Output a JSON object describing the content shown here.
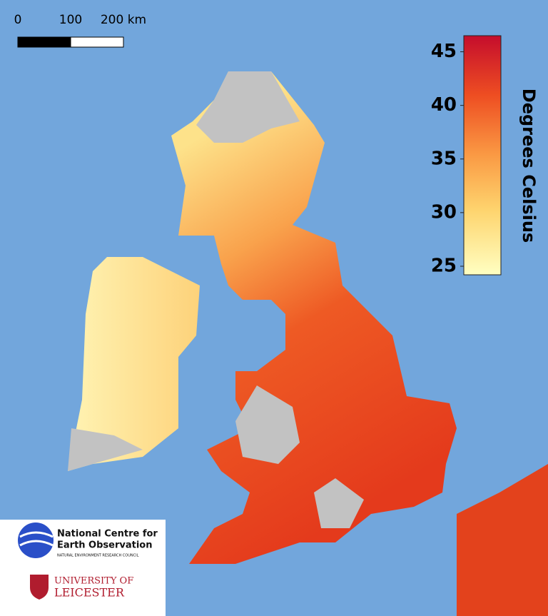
{
  "scale_bar": {
    "ticks": [
      0,
      100,
      {
        "value": 200,
        "label": "200 km"
      }
    ],
    "lim": [
      0,
      200
    ]
  },
  "colorbar": {
    "label": "Degrees Celsius",
    "ticks": [
      25,
      30,
      35,
      40,
      45
    ],
    "lim": [
      24.2,
      46.5
    ]
  },
  "logos": {
    "nceo": {
      "line1": "National Centre for",
      "line2": "Earth Observation",
      "sub": "NATURAL ENVIRONMENT RESEARCH COUNCIL"
    },
    "leicester": {
      "line1": "UNIVERSITY OF",
      "line2": "LEICESTER"
    }
  }
}
